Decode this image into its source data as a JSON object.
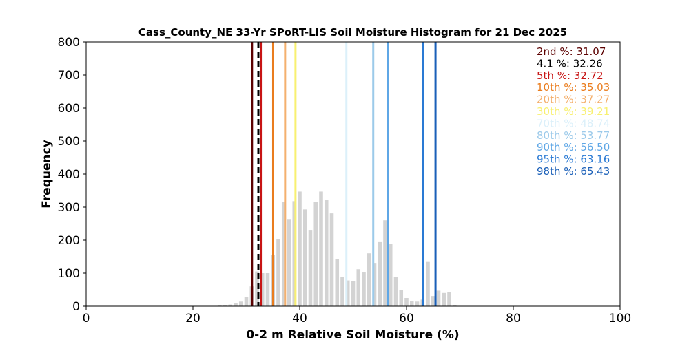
{
  "chart_data": {
    "type": "bar",
    "title": "Cass_County_NE 33-Yr SPoRT-LIS Soil Moisture Histogram for 21 Dec 2025",
    "xlabel": "0-2 m Relative Soil Moisture (%)",
    "ylabel": "Frequency",
    "xlim": [
      0,
      100
    ],
    "ylim": [
      0,
      800
    ],
    "xticks": [
      "0",
      "20",
      "40",
      "60",
      "80",
      "100"
    ],
    "yticks": [
      "0",
      "100",
      "200",
      "300",
      "400",
      "500",
      "600",
      "700",
      "800"
    ],
    "bar_color": "#d3d3d3",
    "bins": {
      "x": [
        25,
        26,
        27,
        28,
        29,
        30,
        31,
        32,
        33,
        34,
        35,
        36,
        37,
        38,
        39,
        40,
        41,
        42,
        43,
        44,
        45,
        46,
        47,
        48,
        49,
        50,
        51,
        52,
        53,
        54,
        55,
        56,
        57,
        58,
        59,
        60,
        61,
        62,
        63,
        64,
        65,
        66,
        67,
        68,
        69
      ],
      "values": [
        2,
        3,
        5,
        9,
        14,
        28,
        60,
        105,
        100,
        100,
        155,
        202,
        316,
        262,
        318,
        347,
        293,
        229,
        316,
        347,
        322,
        281,
        142,
        89,
        78,
        77,
        112,
        102,
        160,
        131,
        194,
        260,
        188,
        89,
        48,
        25,
        16,
        14,
        20,
        134,
        31,
        47,
        40,
        42,
        3
      ]
    },
    "percentiles": [
      {
        "label": "2nd %",
        "value": "31.07",
        "x": 31.07,
        "color": "#5c0000",
        "style": "solid"
      },
      {
        "label": "4.1 %",
        "value": "32.26",
        "x": 32.26,
        "color": "#000000",
        "style": "dashed"
      },
      {
        "label": "5th %",
        "value": "32.72",
        "x": 32.72,
        "color": "#c81414",
        "style": "solid"
      },
      {
        "label": "10th %",
        "value": "35.03",
        "x": 35.03,
        "color": "#ea7d1e",
        "style": "solid"
      },
      {
        "label": "20th %",
        "value": "37.27",
        "x": 37.27,
        "color": "#f4b06e",
        "style": "solid"
      },
      {
        "label": "30th %",
        "value": "39.21",
        "x": 39.21,
        "color": "#f8f070",
        "style": "solid"
      },
      {
        "label": "70th %",
        "value": "48.74",
        "x": 48.74,
        "color": "#dcf0fa",
        "style": "solid"
      },
      {
        "label": "80th %",
        "value": "53.77",
        "x": 53.77,
        "color": "#9ccaea",
        "style": "solid"
      },
      {
        "label": "90th %",
        "value": "56.50",
        "x": 56.5,
        "color": "#5fa7e6",
        "style": "solid"
      },
      {
        "label": "95th %",
        "value": "63.16",
        "x": 63.16,
        "color": "#2a7ad4",
        "style": "solid"
      },
      {
        "label": "98th %",
        "value": "65.43",
        "x": 65.43,
        "color": "#1a5fb8",
        "style": "solid"
      }
    ],
    "legend_placement": "top-right",
    "grid": false
  }
}
